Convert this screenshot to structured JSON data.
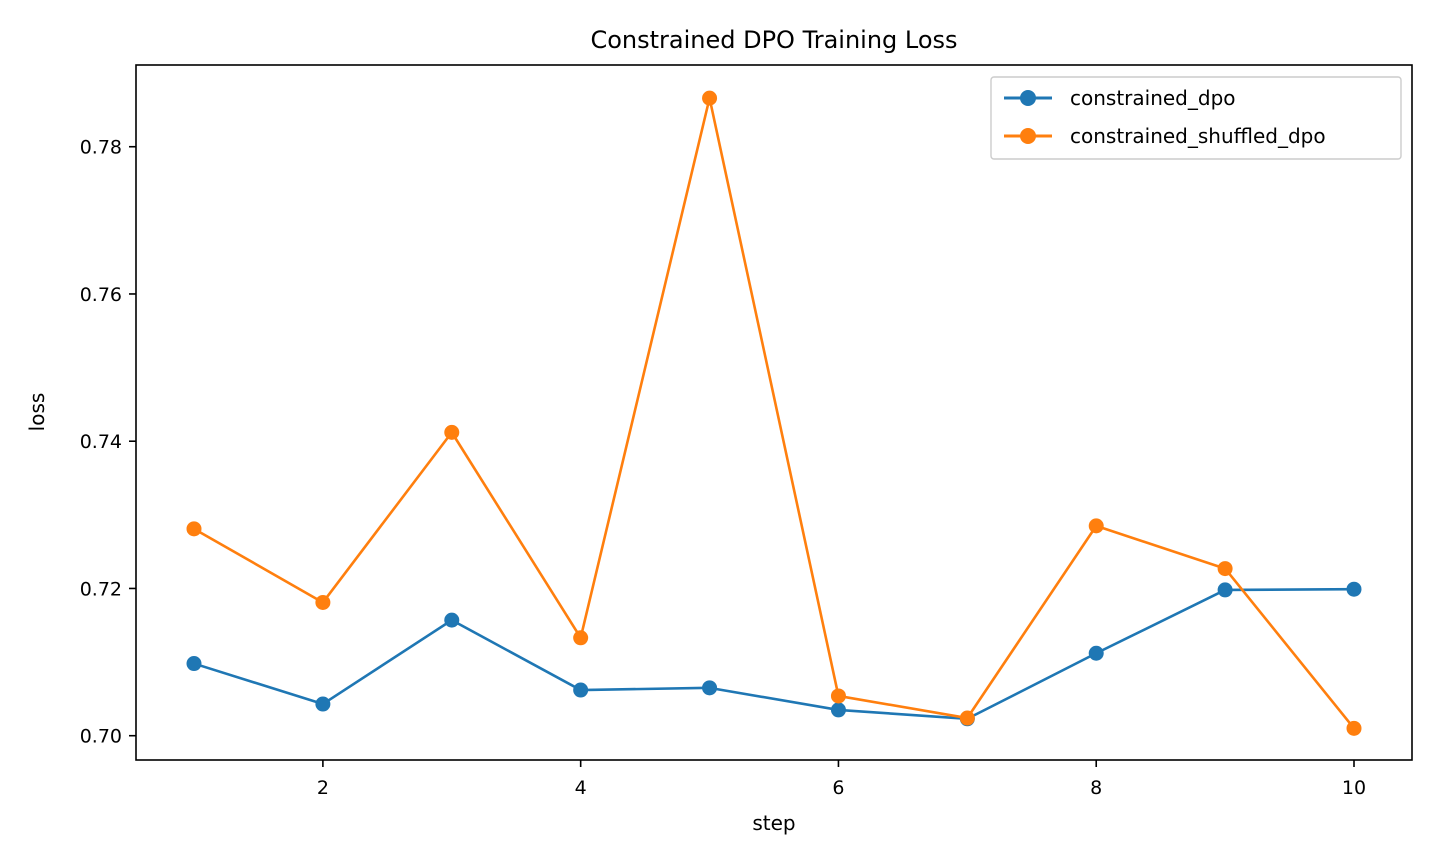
{
  "chart_data": {
    "type": "line",
    "title": "Constrained DPO Training Loss",
    "xlabel": "step",
    "ylabel": "loss",
    "xlim": [
      0.55,
      10.45
    ],
    "ylim": [
      0.6967,
      0.7911
    ],
    "x_ticks": [
      2,
      4,
      6,
      8,
      10
    ],
    "y_ticks": [
      0.7,
      0.72,
      0.74,
      0.76,
      0.78
    ],
    "x_tick_labels": [
      "2",
      "4",
      "6",
      "8",
      "10"
    ],
    "y_tick_labels": [
      "0.70",
      "0.72",
      "0.74",
      "0.76",
      "0.78"
    ],
    "grid": false,
    "legend_position": "upper right",
    "x": [
      1,
      2,
      3,
      4,
      5,
      6,
      7,
      8,
      9,
      10
    ],
    "series": [
      {
        "name": "constrained_dpo",
        "color": "#1f77b4",
        "marker": "circle",
        "values": [
          0.7098,
          0.7043,
          0.7157,
          0.7062,
          0.7065,
          0.7035,
          0.7023,
          0.7112,
          0.7198,
          0.7199
        ]
      },
      {
        "name": "constrained_shuffled_dpo",
        "color": "#ff7f0e",
        "marker": "circle",
        "values": [
          0.7281,
          0.7181,
          0.7412,
          0.7133,
          0.7866,
          0.7054,
          0.7024,
          0.7285,
          0.7227,
          0.701
        ]
      }
    ]
  }
}
